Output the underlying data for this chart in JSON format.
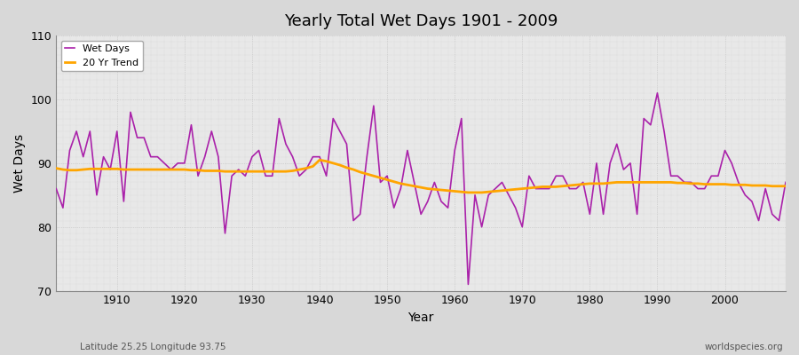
{
  "title": "Yearly Total Wet Days 1901 - 2009",
  "xlabel": "Year",
  "ylabel": "Wet Days",
  "subtitle_left": "Latitude 25.25 Longitude 93.75",
  "subtitle_right": "worldspecies.org",
  "ylim": [
    70,
    110
  ],
  "yticks": [
    70,
    80,
    90,
    100,
    110
  ],
  "line_color": "#aa22aa",
  "trend_color": "#ffa500",
  "fig_bg_color": "#d8d8d8",
  "plot_bg_color": "#e8e8e8",
  "legend_wet": "Wet Days",
  "legend_trend": "20 Yr Trend",
  "years": [
    1901,
    1902,
    1903,
    1904,
    1905,
    1906,
    1907,
    1908,
    1909,
    1910,
    1911,
    1912,
    1913,
    1914,
    1915,
    1916,
    1917,
    1918,
    1919,
    1920,
    1921,
    1922,
    1923,
    1924,
    1925,
    1926,
    1927,
    1928,
    1929,
    1930,
    1931,
    1932,
    1933,
    1934,
    1935,
    1936,
    1937,
    1938,
    1939,
    1940,
    1941,
    1942,
    1943,
    1944,
    1945,
    1946,
    1947,
    1948,
    1949,
    1950,
    1951,
    1952,
    1953,
    1954,
    1955,
    1956,
    1957,
    1958,
    1959,
    1960,
    1961,
    1962,
    1963,
    1964,
    1965,
    1966,
    1967,
    1968,
    1969,
    1970,
    1971,
    1972,
    1973,
    1974,
    1975,
    1976,
    1977,
    1978,
    1979,
    1980,
    1981,
    1982,
    1983,
    1984,
    1985,
    1986,
    1987,
    1988,
    1989,
    1990,
    1991,
    1992,
    1993,
    1994,
    1995,
    1996,
    1997,
    1998,
    1999,
    2000,
    2001,
    2002,
    2003,
    2004,
    2005,
    2006,
    2007,
    2008,
    2009
  ],
  "wet_days": [
    86,
    83,
    92,
    95,
    91,
    95,
    85,
    91,
    89,
    95,
    84,
    98,
    94,
    94,
    91,
    91,
    90,
    89,
    90,
    90,
    96,
    88,
    91,
    95,
    91,
    79,
    88,
    89,
    88,
    91,
    92,
    88,
    88,
    97,
    93,
    91,
    88,
    89,
    91,
    91,
    88,
    97,
    95,
    93,
    81,
    82,
    91,
    99,
    87,
    88,
    83,
    86,
    92,
    87,
    82,
    84,
    87,
    84,
    83,
    92,
    97,
    71,
    85,
    80,
    85,
    86,
    87,
    85,
    83,
    80,
    88,
    86,
    86,
    86,
    88,
    88,
    86,
    86,
    87,
    82,
    90,
    82,
    90,
    93,
    89,
    90,
    82,
    97,
    96,
    101,
    95,
    88,
    88,
    87,
    87,
    86,
    86,
    88,
    88,
    92,
    90,
    87,
    85,
    84,
    81,
    86,
    82,
    81,
    87
  ],
  "trend_years": [
    1901,
    1902,
    1903,
    1904,
    1905,
    1906,
    1907,
    1908,
    1909,
    1910,
    1911,
    1912,
    1913,
    1914,
    1915,
    1916,
    1917,
    1918,
    1919,
    1920,
    1921,
    1922,
    1923,
    1924,
    1925,
    1926,
    1927,
    1928,
    1929,
    1930,
    1931,
    1932,
    1933,
    1934,
    1935,
    1936,
    1937,
    1938,
    1939,
    1940,
    1941,
    1942,
    1943,
    1944,
    1945,
    1946,
    1947,
    1948,
    1949,
    1950,
    1951,
    1952,
    1953,
    1954,
    1955,
    1956,
    1957,
    1958,
    1959,
    1960,
    1961,
    1962,
    1963,
    1964,
    1965,
    1966,
    1967,
    1968,
    1969,
    1970,
    1971,
    1972,
    1973,
    1974,
    1975,
    1976,
    1977,
    1978,
    1979,
    1980,
    1981,
    1982,
    1983,
    1984,
    1985,
    1986,
    1987,
    1988,
    1989,
    1990,
    1991,
    1992,
    1993,
    1994,
    1995,
    1996,
    1997,
    1998,
    1999,
    2000,
    2001,
    2002,
    2003,
    2004,
    2005,
    2006,
    2007,
    2008,
    2009
  ],
  "trend_values": [
    89.2,
    89.0,
    88.9,
    88.9,
    89.0,
    89.1,
    89.1,
    89.1,
    89.1,
    89.1,
    89.0,
    89.0,
    89.0,
    89.0,
    89.0,
    89.0,
    89.0,
    89.0,
    89.0,
    89.0,
    88.9,
    88.9,
    88.8,
    88.8,
    88.8,
    88.7,
    88.7,
    88.7,
    88.7,
    88.7,
    88.7,
    88.7,
    88.7,
    88.7,
    88.7,
    88.8,
    89.0,
    89.2,
    89.5,
    90.5,
    90.3,
    90.0,
    89.7,
    89.3,
    89.0,
    88.6,
    88.3,
    88.0,
    87.7,
    87.4,
    87.1,
    86.8,
    86.6,
    86.4,
    86.2,
    86.0,
    85.9,
    85.8,
    85.7,
    85.6,
    85.5,
    85.4,
    85.4,
    85.4,
    85.5,
    85.6,
    85.7,
    85.8,
    85.9,
    86.0,
    86.1,
    86.2,
    86.3,
    86.3,
    86.3,
    86.4,
    86.5,
    86.6,
    86.7,
    86.8,
    86.8,
    86.8,
    86.9,
    87.0,
    87.0,
    87.0,
    87.0,
    87.0,
    87.0,
    87.0,
    87.0,
    87.0,
    86.9,
    86.9,
    86.8,
    86.8,
    86.7,
    86.7,
    86.7,
    86.7,
    86.6,
    86.6,
    86.6,
    86.5,
    86.5,
    86.5,
    86.4,
    86.4,
    86.4
  ]
}
